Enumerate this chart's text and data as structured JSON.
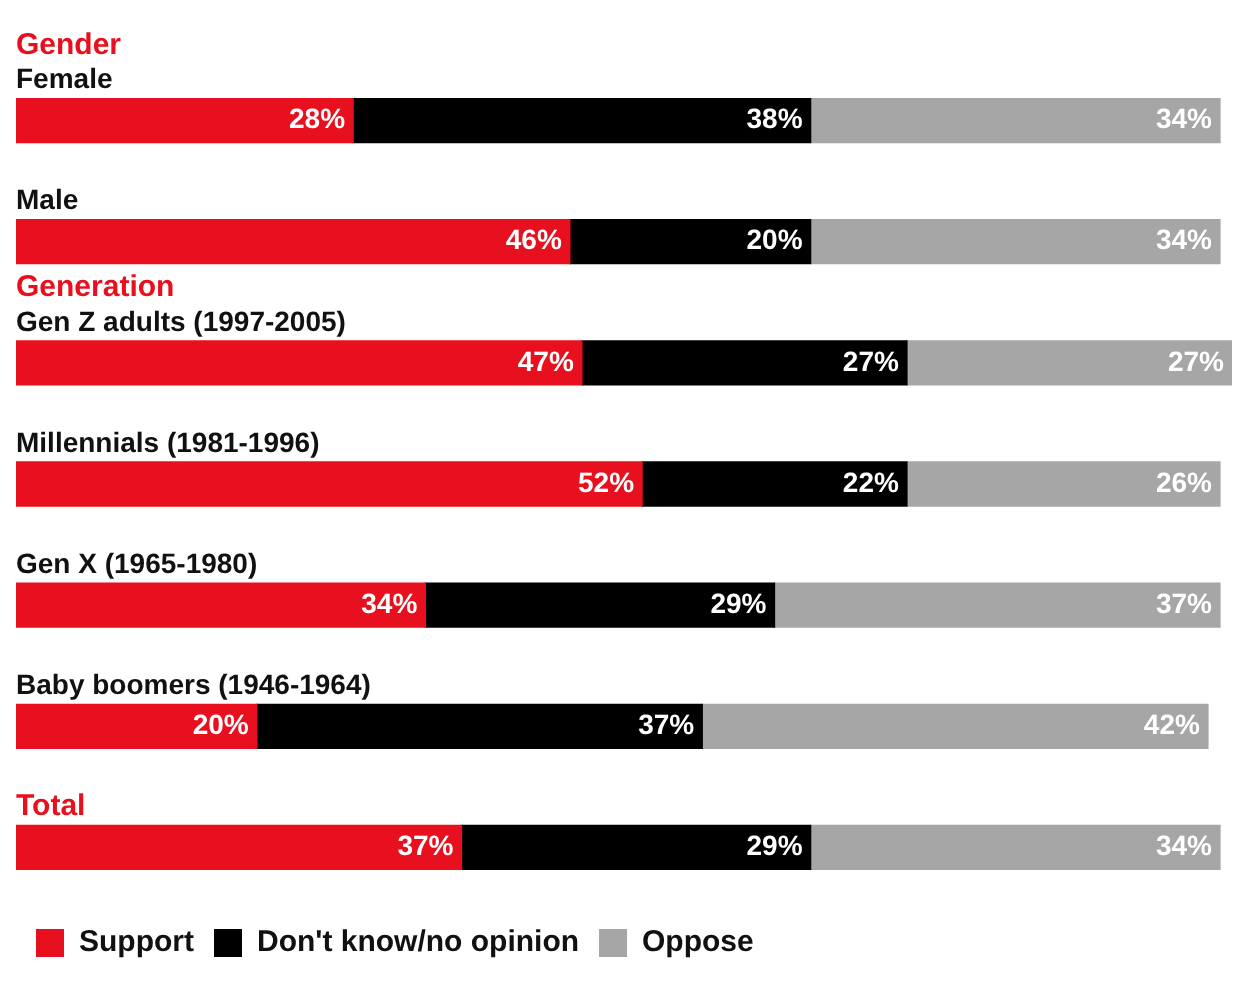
{
  "chart_data": {
    "type": "bar",
    "orientation": "horizontal",
    "stacked": true,
    "categories": [
      "Female",
      "Male",
      "Gen Z adults (1997-2005)",
      "Millennials (1981-1996)",
      "Gen X (1965-1980)",
      "Baby boomers (1946-1964)",
      null
    ],
    "annotations": [
      "Gender",
      "Generation",
      "Total"
    ],
    "series": [
      {
        "name": "Support",
        "color": "#e8101e",
        "values": [
          28,
          46,
          47,
          52,
          34,
          20,
          37
        ],
        "value_labels": [
          "28%",
          "46%",
          "47%",
          "52%",
          "34%",
          "20%",
          "37%"
        ]
      },
      {
        "name": "Don't know/no opinion",
        "color": "#000000",
        "values": [
          38,
          20,
          27,
          22,
          29,
          37,
          29
        ],
        "value_labels": [
          "38%",
          "20%",
          "27%",
          "22%",
          "29%",
          "37%",
          "29%"
        ]
      },
      {
        "name": "Oppose",
        "color": "#a6a6a6",
        "values": [
          34,
          34,
          27,
          26,
          37,
          42,
          34
        ],
        "value_labels": [
          "34%",
          "34%",
          "27%",
          "26%",
          "37%",
          "42%",
          "34%"
        ]
      }
    ],
    "xlim": [
      0,
      101
    ],
    "tick_labels": "y",
    "legend": "bottom left"
  }
}
